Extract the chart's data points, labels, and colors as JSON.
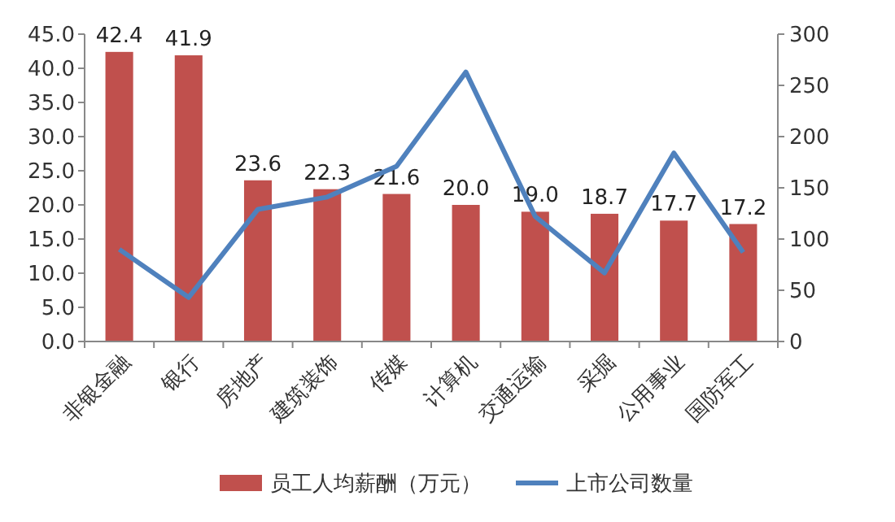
{
  "chart_data": {
    "type": "bar",
    "categories": [
      "非银金融",
      "银行",
      "房地产",
      "建筑装饰",
      "传媒",
      "计算机",
      "交通运输",
      "采掘",
      "公用事业",
      "国防军工"
    ],
    "series": [
      {
        "name": "员工人均薪酬（万元）",
        "color": "#c0504d",
        "values": [
          42.4,
          41.9,
          23.6,
          22.3,
          21.6,
          20.0,
          19.0,
          18.7,
          17.7,
          17.2
        ]
      },
      {
        "name": "上市公司数量",
        "type": "line",
        "axis": "y2",
        "color": "#4f81bd",
        "values": [
          90,
          43,
          129,
          141,
          171,
          263,
          122,
          67,
          184,
          87
        ]
      }
    ],
    "ylim": [
      0,
      45
    ],
    "yticks": [
      {
        "value": 0,
        "label": "0.0"
      },
      {
        "value": 5,
        "label": "5.0"
      },
      {
        "value": 10,
        "label": "10.0"
      },
      {
        "value": 15,
        "label": "15.0"
      },
      {
        "value": 20,
        "label": "20.0"
      },
      {
        "value": 25,
        "label": "25.0"
      },
      {
        "value": 30,
        "label": "30.0"
      },
      {
        "value": 35,
        "label": "35.0"
      },
      {
        "value": 40,
        "label": "40.0"
      },
      {
        "value": 45,
        "label": "45.0"
      }
    ],
    "y2lim": [
      0,
      300
    ],
    "y2ticks": [
      0,
      50,
      100,
      150,
      200,
      250,
      300
    ],
    "value_labels": [
      "42.4",
      "41.9",
      "23.6",
      "22.3",
      "21.6",
      "20.0",
      "19.0",
      "18.7",
      "17.7",
      "17.2"
    ],
    "legend": "bottom",
    "grid": false,
    "marker": "none",
    "line_style": "solid"
  }
}
